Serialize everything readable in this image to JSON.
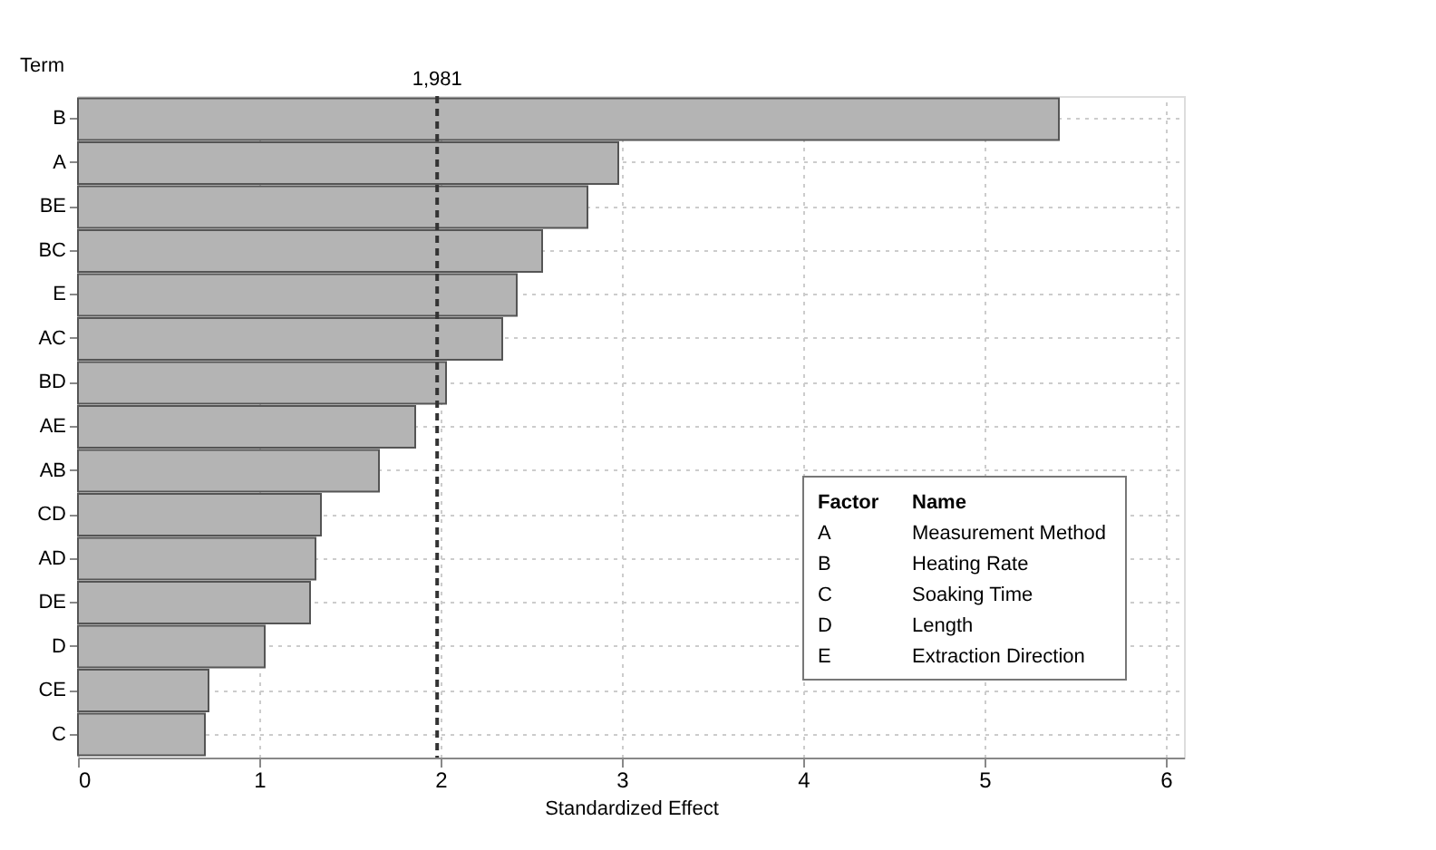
{
  "chart_data": {
    "type": "bar",
    "orientation": "horizontal",
    "xlabel": "Standardized Effect",
    "ylabel": "Term",
    "categories": [
      "B",
      "A",
      "BE",
      "BC",
      "E",
      "AC",
      "BD",
      "AE",
      "AB",
      "CD",
      "AD",
      "DE",
      "D",
      "CE",
      "C"
    ],
    "values": [
      5.41,
      2.98,
      2.81,
      2.56,
      2.42,
      2.34,
      2.03,
      1.86,
      1.66,
      1.34,
      1.31,
      1.28,
      1.03,
      0.72,
      0.7
    ],
    "color": "#b4b4b4",
    "xlim": [
      0,
      6.1
    ],
    "xticks": [
      0,
      1,
      2,
      3,
      4,
      5,
      6
    ],
    "grid": true,
    "ref_lines": [
      {
        "axis": "x",
        "value": 1.981,
        "label": "1,981",
        "color": "#333333",
        "line_style": "dashed"
      }
    ],
    "annotations": [
      "Factor",
      "Name",
      "A",
      "Measurement Method",
      "B",
      "Heating Rate",
      "C",
      "Soaking Time",
      "D",
      "Length",
      "E",
      "Extraction Direction"
    ]
  }
}
